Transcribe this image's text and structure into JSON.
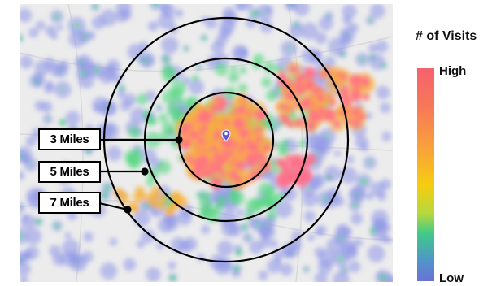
{
  "legend": {
    "title": "# of Visits",
    "high_label": "High",
    "low_label": "Low",
    "gradient_colors": [
      "#f5626e",
      "#f77858",
      "#f9a23a",
      "#f5cd10",
      "#b7d83d",
      "#3fc98a",
      "#4f96c8",
      "#6a72d6"
    ]
  },
  "rings": [
    {
      "label": "3 Miles"
    },
    {
      "label": "5 Miles"
    },
    {
      "label": "7 Miles"
    }
  ],
  "colors": {
    "heat_low": "#8e95e8",
    "heat_mid": "#52d77f",
    "heat_warm": "#f7b23b",
    "heat_high": "#ff6f8a",
    "map_background": "#ececec",
    "pin": "#5a55d6"
  }
}
